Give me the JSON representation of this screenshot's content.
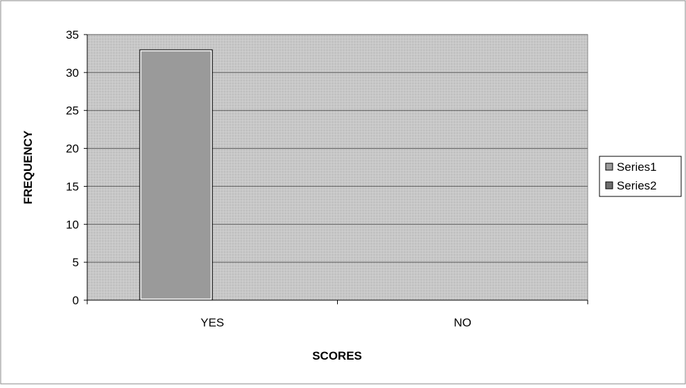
{
  "colors": {
    "plot_bg": "#c7c7c7",
    "gridline": "#5a5a5a",
    "axis": "#000000",
    "series1_fill": "#9a9a9a",
    "series2_fill": "#6e6e6e",
    "frame": "#8a8a8a"
  },
  "chart_data": {
    "type": "bar",
    "categories": [
      "YES",
      "NO"
    ],
    "series": [
      {
        "name": "Series1",
        "values": [
          33,
          0
        ]
      },
      {
        "name": "Series2",
        "values": [
          0,
          0
        ]
      }
    ],
    "xlabel": "SCORES",
    "ylabel": "FREQUENCY",
    "ylim": [
      0,
      35
    ],
    "yticks": [
      0,
      5,
      10,
      15,
      20,
      25,
      30,
      35
    ],
    "grid": true,
    "legend_position": "right"
  }
}
